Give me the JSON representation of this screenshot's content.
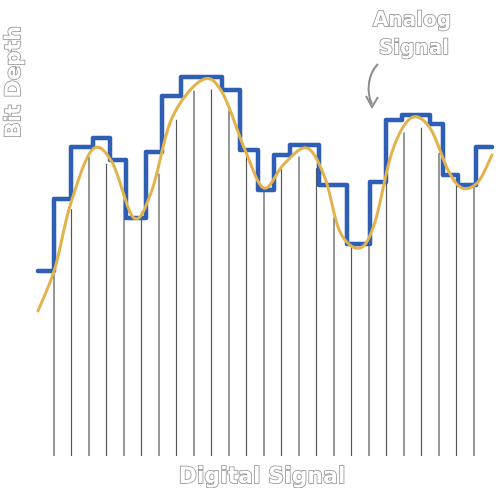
{
  "labels": {
    "y_axis": "Bit Depth",
    "x_axis": "Digital Signal",
    "annotation_line1": "Analog",
    "annotation_line2": "Signal"
  },
  "colors": {
    "digital": "#2f5fb5",
    "analog": "#e2b24c",
    "sample_lines": "#555555",
    "label_outline": "#8d8d8d"
  },
  "annotation_arrow_icon": "curved-arrow-icon"
}
